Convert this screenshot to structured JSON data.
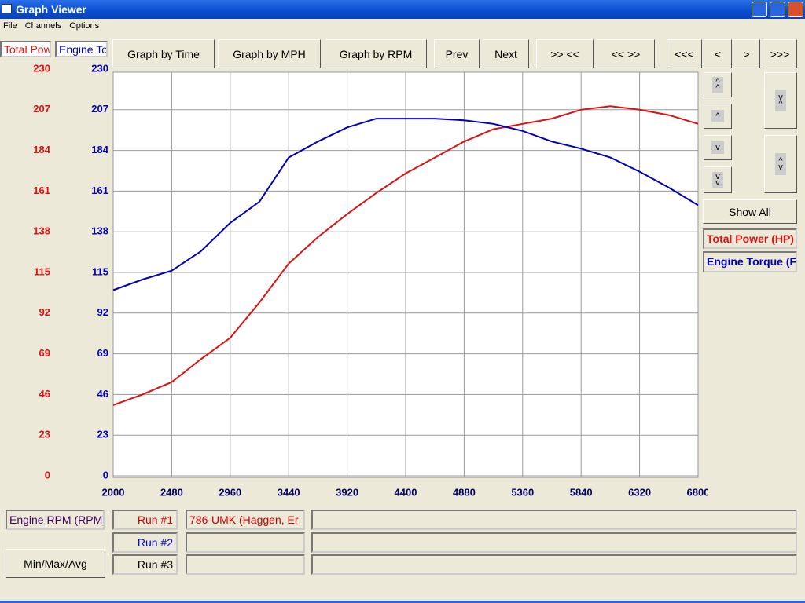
{
  "window": {
    "title": "Graph Viewer"
  },
  "menu": [
    "File",
    "Channels",
    "Options"
  ],
  "toolbar": [
    "Graph by Time",
    "Graph by MPH",
    "Graph by RPM",
    "Prev",
    "Next",
    ">> <<",
    "<< >>",
    "<<<",
    "<",
    ">",
    ">>>"
  ],
  "show_all": "Show All",
  "x_channel": "Engine RPM (RPM)",
  "min_max_avg": "Min/Max/Avg",
  "runs": [
    {
      "label": "Run #1",
      "color": "#cc0000",
      "name": "786-UMK (Haggen, Er"
    },
    {
      "label": "Run #2",
      "color": "#0000cc"
    },
    {
      "label": "Run #3",
      "color": "#000000"
    }
  ],
  "chart_data": {
    "type": "line",
    "x": [
      2000,
      2240,
      2480,
      2720,
      2960,
      3200,
      3440,
      3680,
      3920,
      4160,
      4400,
      4640,
      4880,
      5120,
      5360,
      5600,
      5840,
      6080,
      6320,
      6560,
      6800
    ],
    "xlim": [
      2000,
      6800
    ],
    "xticks": [
      2000,
      2480,
      2960,
      3440,
      3920,
      4400,
      4880,
      5360,
      5840,
      6320,
      6800
    ],
    "ylim": [
      0,
      230
    ],
    "yticks": [
      0,
      23,
      46,
      69,
      92,
      115,
      138,
      161,
      184,
      207,
      230
    ],
    "y2lim": [
      0,
      230
    ],
    "y2ticks": [
      0,
      23,
      46,
      69,
      92,
      115,
      138,
      161,
      184,
      207,
      230
    ],
    "grid": true,
    "series": [
      {
        "name": "Total Power (HP)",
        "color": "#dd1111",
        "values": [
          40,
          46,
          53,
          66,
          78,
          98,
          120,
          135,
          148,
          160,
          171,
          180,
          189,
          196,
          199,
          202,
          207,
          209,
          207,
          204,
          199
        ]
      },
      {
        "name": "Engine Torque (F",
        "color": "#0000bb",
        "axis": "y2",
        "values": [
          105,
          111,
          116,
          127,
          143,
          155,
          180,
          189,
          197,
          202,
          202,
          202,
          201,
          199,
          195,
          189,
          185,
          180,
          172,
          163,
          153
        ]
      }
    ]
  }
}
